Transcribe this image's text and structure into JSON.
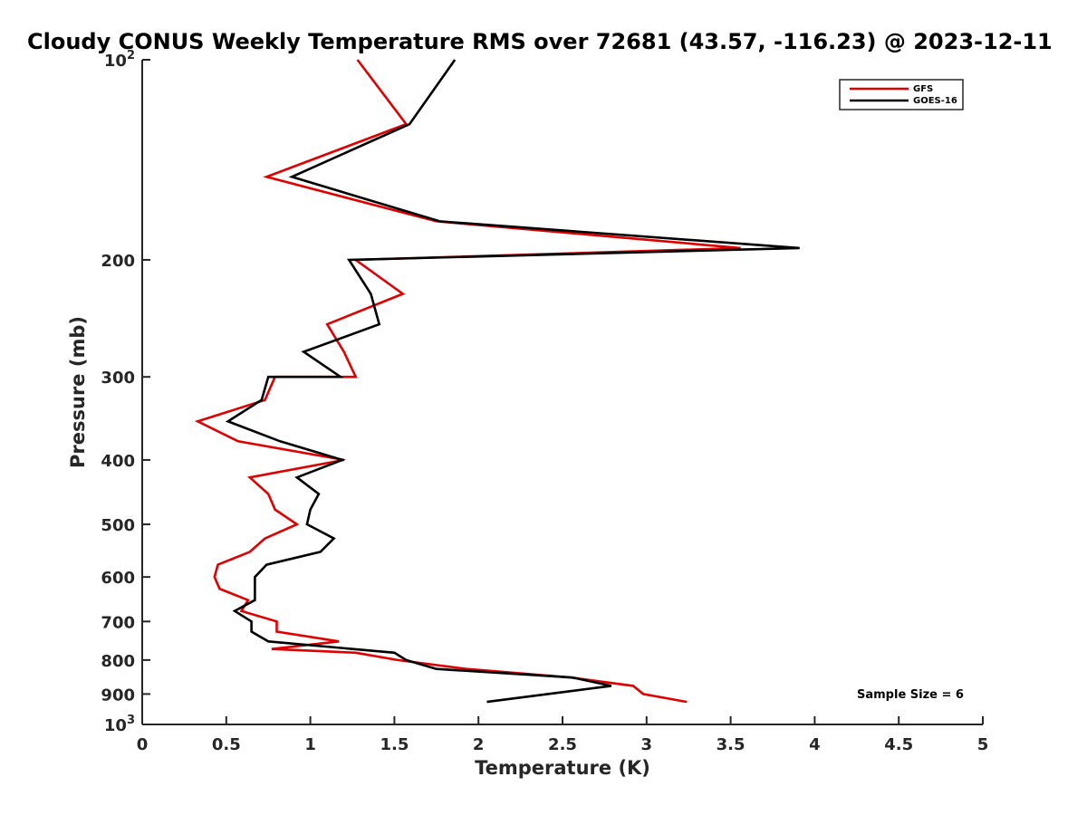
{
  "chart_data": {
    "type": "line",
    "title": "Cloudy CONUS Weekly Temperature RMS over 72681 (43.57, -116.23) @ 2023-12-11",
    "xlabel": "Temperature (K)",
    "ylabel": "Pressure (mb)",
    "xlim": [
      0,
      5
    ],
    "ylim": [
      100,
      1000
    ],
    "yscale": "log",
    "y_reversed": true,
    "xticks": [
      0,
      0.5,
      1,
      1.5,
      2,
      2.5,
      3,
      3.5,
      4,
      4.5,
      5
    ],
    "xtick_labels": [
      "0",
      "0.5",
      "1",
      "1.5",
      "2",
      "2.5",
      "3",
      "3.5",
      "4",
      "4.5",
      "5"
    ],
    "yticks": [
      {
        "value": 100,
        "base": "10",
        "exp": "2"
      },
      {
        "value": 200,
        "label": "200"
      },
      {
        "value": 300,
        "label": "300"
      },
      {
        "value": 400,
        "label": "400"
      },
      {
        "value": 500,
        "label": "500"
      },
      {
        "value": 600,
        "label": "600"
      },
      {
        "value": 700,
        "label": "700"
      },
      {
        "value": 800,
        "label": "800"
      },
      {
        "value": 900,
        "label": "900"
      },
      {
        "value": 1000,
        "base": "10",
        "exp": "3"
      }
    ],
    "grid": false,
    "legend_position": "top-right",
    "annotation": "Sample Size = 6",
    "series": [
      {
        "name": "GFS",
        "color": "#e00000",
        "points": [
          [
            1.28,
            100
          ],
          [
            1.57,
            125
          ],
          [
            0.74,
            150
          ],
          [
            1.75,
            175
          ],
          [
            3.56,
            192
          ],
          [
            1.27,
            200
          ],
          [
            1.55,
            225
          ],
          [
            1.1,
            250
          ],
          [
            1.2,
            275
          ],
          [
            1.27,
            300
          ],
          [
            0.79,
            300
          ],
          [
            0.73,
            325
          ],
          [
            0.33,
            350
          ],
          [
            0.57,
            375
          ],
          [
            1.2,
            400
          ],
          [
            0.64,
            425
          ],
          [
            0.75,
            450
          ],
          [
            0.79,
            475
          ],
          [
            0.92,
            500
          ],
          [
            0.73,
            525
          ],
          [
            0.64,
            550
          ],
          [
            0.45,
            575
          ],
          [
            0.43,
            600
          ],
          [
            0.46,
            625
          ],
          [
            0.63,
            650
          ],
          [
            0.59,
            675
          ],
          [
            0.8,
            700
          ],
          [
            0.8,
            725
          ],
          [
            1.17,
            750
          ],
          [
            0.77,
            770
          ],
          [
            1.27,
            780
          ],
          [
            1.52,
            800
          ],
          [
            1.93,
            825
          ],
          [
            2.55,
            850
          ],
          [
            2.92,
            875
          ],
          [
            2.98,
            900
          ],
          [
            3.24,
            925
          ]
        ]
      },
      {
        "name": "GOES-16",
        "color": "#000000",
        "points": [
          [
            1.86,
            100
          ],
          [
            1.59,
            125
          ],
          [
            0.89,
            150
          ],
          [
            1.77,
            175
          ],
          [
            3.91,
            192
          ],
          [
            1.23,
            200
          ],
          [
            1.36,
            225
          ],
          [
            1.41,
            250
          ],
          [
            0.96,
            275
          ],
          [
            1.18,
            300
          ],
          [
            0.75,
            300
          ],
          [
            0.71,
            325
          ],
          [
            0.51,
            350
          ],
          [
            0.82,
            375
          ],
          [
            1.19,
            400
          ],
          [
            0.92,
            425
          ],
          [
            1.05,
            450
          ],
          [
            1.0,
            475
          ],
          [
            0.98,
            500
          ],
          [
            1.14,
            525
          ],
          [
            1.06,
            550
          ],
          [
            0.74,
            575
          ],
          [
            0.67,
            600
          ],
          [
            0.67,
            625
          ],
          [
            0.67,
            650
          ],
          [
            0.55,
            675
          ],
          [
            0.65,
            700
          ],
          [
            0.65,
            725
          ],
          [
            0.75,
            750
          ],
          [
            1.5,
            780
          ],
          [
            1.57,
            800
          ],
          [
            1.75,
            825
          ],
          [
            2.56,
            850
          ],
          [
            2.79,
            875
          ],
          [
            2.05,
            925
          ]
        ]
      }
    ]
  }
}
